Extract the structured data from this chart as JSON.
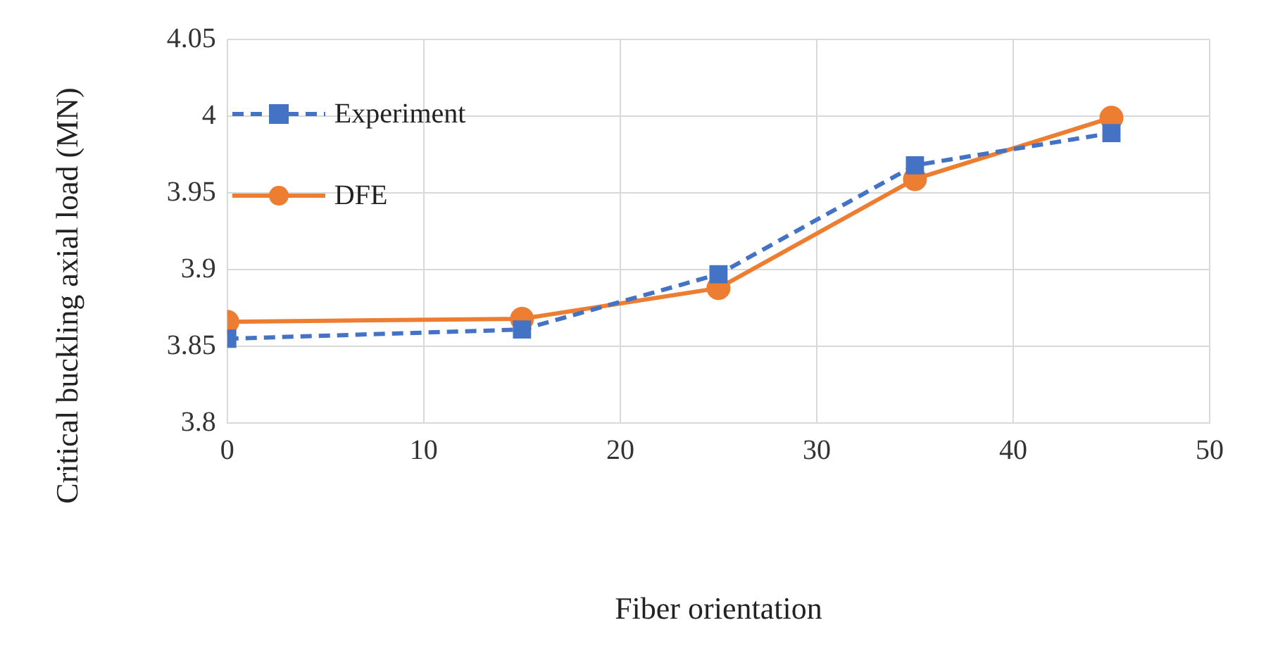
{
  "chart_data": {
    "type": "line",
    "xlabel": "Fiber orientation",
    "ylabel": "Critical buckling axial load (MN)",
    "x": [
      0,
      15,
      25,
      35,
      45
    ],
    "series": [
      {
        "name": "Experiment",
        "color": "#4472c4",
        "values": [
          3.855,
          3.861,
          3.897,
          3.968,
          3.989
        ],
        "marker": "square",
        "line_style": "dashed"
      },
      {
        "name": "DFE",
        "color": "#ed7d31",
        "values": [
          3.866,
          3.868,
          3.888,
          3.959,
          3.999
        ],
        "marker": "circle",
        "line_style": "solid"
      }
    ],
    "xlim": [
      0,
      50
    ],
    "xticks": [
      0,
      10,
      20,
      30,
      40,
      50
    ],
    "ylim": [
      3.8,
      4.05
    ],
    "yticks": [
      3.8,
      3.85,
      3.9,
      3.95,
      4,
      4.05
    ],
    "grid": true,
    "legend": "top left"
  }
}
